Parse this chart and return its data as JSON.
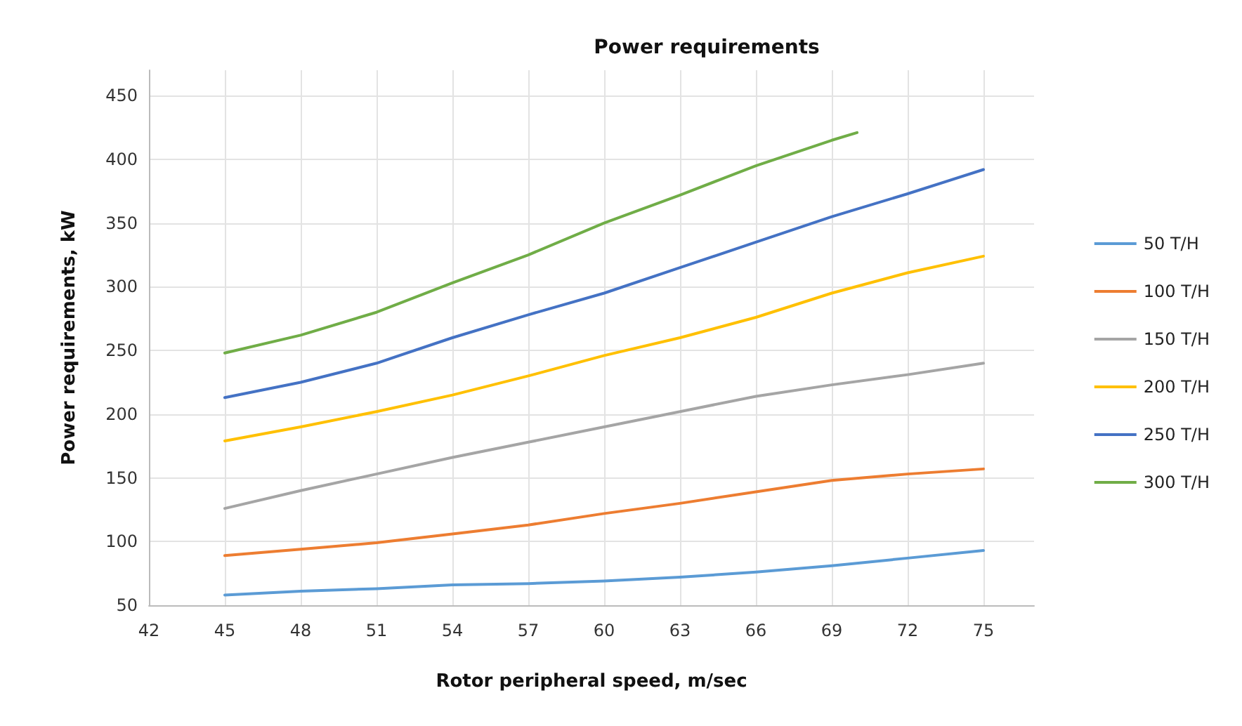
{
  "chart_data": {
    "type": "line",
    "title": "Power requirements",
    "xlabel": "Rotor peripheral speed, m/sec",
    "ylabel": "Power requirements, kW",
    "x": [
      45,
      48,
      51,
      54,
      57,
      60,
      63,
      66,
      69,
      72,
      75
    ],
    "series": [
      {
        "name": "50 T/H",
        "color": "#5b9bd5",
        "values": [
          58,
          61,
          63,
          66,
          67,
          69,
          72,
          76,
          81,
          87,
          93
        ]
      },
      {
        "name": "100 T/H",
        "color": "#ed7d31",
        "values": [
          89,
          94,
          99,
          106,
          113,
          122,
          130,
          139,
          148,
          153,
          157
        ]
      },
      {
        "name": "150 T/H",
        "color": "#a5a5a5",
        "values": [
          126,
          140,
          153,
          166,
          178,
          190,
          202,
          214,
          223,
          231,
          240
        ]
      },
      {
        "name": "200 T/H",
        "color": "#ffc000",
        "values": [
          179,
          190,
          202,
          215,
          230,
          246,
          260,
          276,
          295,
          311,
          324
        ]
      },
      {
        "name": "250 T/H",
        "color": "#4472c4",
        "values": [
          213,
          225,
          240,
          260,
          278,
          295,
          315,
          335,
          355,
          373,
          392
        ]
      },
      {
        "name": "300 T/H",
        "color": "#70ad47",
        "x": [
          45,
          48,
          51,
          54,
          57,
          60,
          63,
          66,
          69,
          70
        ],
        "values": [
          248,
          262,
          280,
          303,
          325,
          350,
          372,
          395,
          415,
          421
        ]
      }
    ],
    "xlim": [
      42,
      77
    ],
    "xticks": [
      42,
      45,
      48,
      51,
      54,
      57,
      60,
      63,
      66,
      69,
      72,
      75
    ],
    "ylim": [
      50,
      470
    ],
    "yticks": [
      50,
      100,
      150,
      200,
      250,
      300,
      350,
      400,
      450
    ],
    "grid": true,
    "legend": "right",
    "marker": "none",
    "line_style": "solid"
  }
}
